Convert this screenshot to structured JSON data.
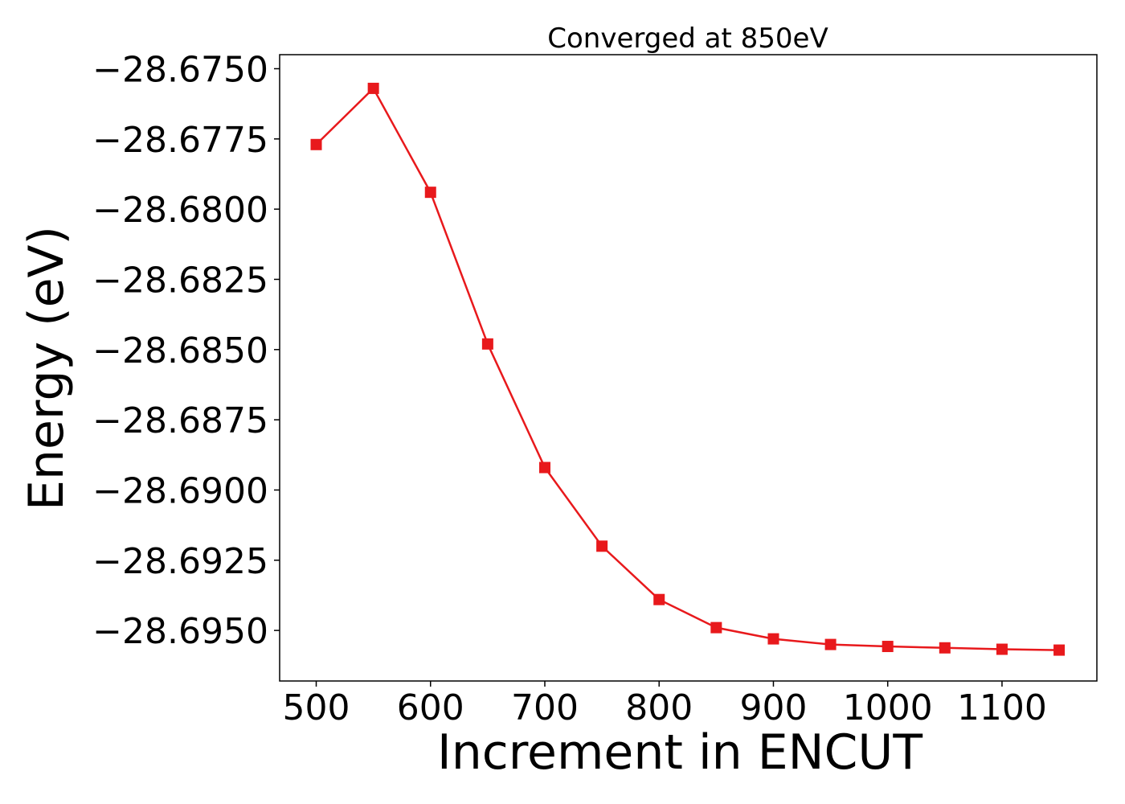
{
  "chart_data": {
    "type": "line",
    "title": "Converged at 850eV",
    "xlabel": "Increment in ENCUT",
    "ylabel": "Energy (eV)",
    "xlim": [
      468,
      1183
    ],
    "ylim": [
      -28.6968,
      -28.6745
    ],
    "x_ticks": [
      500,
      600,
      700,
      800,
      900,
      1000,
      1100
    ],
    "x_tick_labels": [
      "500",
      "600",
      "700",
      "800",
      "900",
      "1000",
      "1100"
    ],
    "y_ticks": [
      -28.675,
      -28.6775,
      -28.68,
      -28.6825,
      -28.685,
      -28.6875,
      -28.69,
      -28.6925,
      -28.695
    ],
    "y_tick_labels": [
      "−28.6750",
      "−28.6775",
      "−28.6800",
      "−28.6825",
      "−28.6850",
      "−28.6875",
      "−28.6900",
      "−28.6925",
      "−28.6950"
    ],
    "grid": false,
    "series": [
      {
        "color": "#e8191c",
        "marker": "square",
        "x": [
          500,
          550,
          600,
          650,
          700,
          750,
          800,
          850,
          900,
          950,
          1000,
          1050,
          1100,
          1150
        ],
        "y": [
          -28.6777,
          -28.6757,
          -28.6794,
          -28.6848,
          -28.6892,
          -28.692,
          -28.6939,
          -28.6949,
          -28.6953,
          -28.6955,
          -28.69557,
          -28.69562,
          -28.69567,
          -28.6957
        ]
      }
    ]
  }
}
